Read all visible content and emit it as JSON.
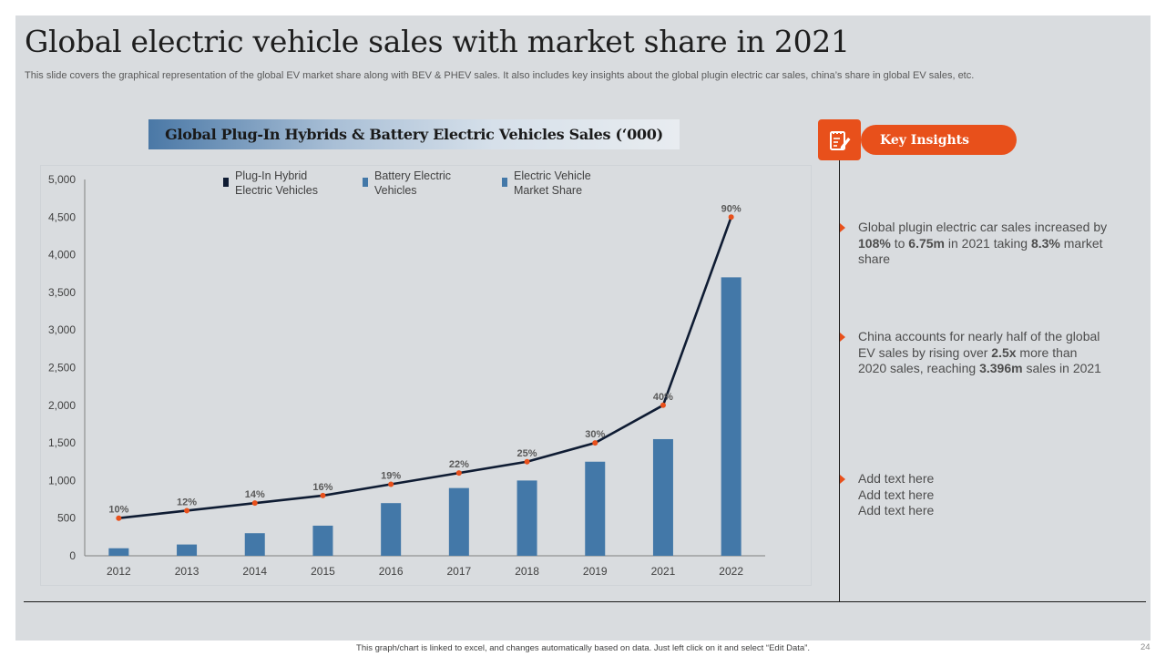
{
  "slide": {
    "title": "Global electric vehicle sales with market share in 2021",
    "subtitle": "This slide covers the graphical representation of the global EV market share along with BEV & PHEV sales. It also includes key insights about the global plugin electric car sales, china’s share in global EV sales, etc.",
    "footer": "This graph/chart is linked to excel, and changes automatically based on data. Just left click on it and select “Edit Data”.",
    "page_number": "24"
  },
  "chart_header": "Global Plug-In Hybrids & Battery Electric Vehicles Sales (‘000)",
  "insights": {
    "title": "Key Insights",
    "icon": "notepad-pencil-icon",
    "accent": "#e8501b",
    "bullets": [
      {
        "parts": [
          {
            "t": "Global plugin electric car sales increased by ",
            "b": false
          },
          {
            "t": "108%",
            "b": true
          },
          {
            "t": " to ",
            "b": false
          },
          {
            "t": "6.75m",
            "b": true
          },
          {
            "t": " in 2021 taking ",
            "b": false
          },
          {
            "t": "8.3%",
            "b": true
          },
          {
            "t": " market share",
            "b": false
          }
        ]
      },
      {
        "parts": [
          {
            "t": "China accounts for nearly half of the global EV sales by rising over ",
            "b": false
          },
          {
            "t": "2.5x",
            "b": true
          },
          {
            "t": " more than 2020 sales, reaching ",
            "b": false
          },
          {
            "t": "3.396m",
            "b": true
          },
          {
            "t": " sales in 2021",
            "b": false
          }
        ]
      },
      {
        "lines": [
          "Add text here",
          "Add text here",
          "Add text here"
        ]
      }
    ]
  },
  "chart_data": {
    "type": "bar+line",
    "categories": [
      "2012",
      "2013",
      "2014",
      "2015",
      "2016",
      "2017",
      "2018",
      "2019",
      "2021",
      "2022"
    ],
    "series": [
      {
        "name": "Plug-In Hybrid Electric Vehicles",
        "type": "line",
        "color": "#0f1c33",
        "values": [
          500,
          600,
          700,
          800,
          950,
          1100,
          1250,
          1500,
          2000,
          4500
        ]
      },
      {
        "name": "Battery Electric Vehicles",
        "type": "bar",
        "color": "#4378a8",
        "values": [
          100,
          150,
          300,
          400,
          700,
          900,
          1000,
          1250,
          1550,
          3700
        ]
      },
      {
        "name": "Electric Vehicle Market  Share",
        "type": "label",
        "color": "#4378a8",
        "values": [
          "10%",
          "12%",
          "14%",
          "16%",
          "19%",
          "22%",
          "25%",
          "30%",
          "40%",
          "90%"
        ]
      }
    ],
    "marker_color": "#e8501b",
    "yticks": [
      "0",
      "500",
      "1,000",
      "1,500",
      "2,000",
      "2,500",
      "3,000",
      "3,500",
      "4,000",
      "4,500",
      "5,000"
    ],
    "ylim": [
      0,
      5000
    ],
    "legend": [
      "Plug-In Hybrid Electric Vehicles",
      "Battery Electric Vehicles",
      "Electric Vehicle Market  Share"
    ],
    "legend_lines": [
      [
        "Plug-In Hybrid",
        "Electric Vehicles"
      ],
      [
        "Battery Electric",
        "Vehicles"
      ],
      [
        "Electric Vehicle",
        "Market  Share"
      ]
    ],
    "legend_position": "top"
  }
}
